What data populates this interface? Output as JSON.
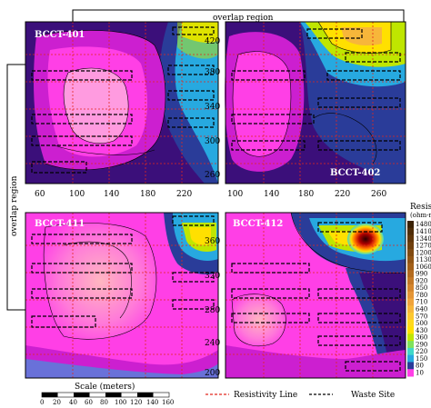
{
  "overlap_top": "overlap region",
  "overlap_left": "overlap region",
  "panels": [
    {
      "label": "BCCT-401"
    },
    {
      "label": "BCCT-402"
    },
    {
      "label": "BCCT-411"
    },
    {
      "label": "BCCT-412"
    }
  ],
  "top_x_ticks": [
    "60",
    "100",
    "140",
    "180",
    "220"
  ],
  "top_x_ticks_right": [
    "100",
    "140",
    "180",
    "220",
    "260"
  ],
  "top_y_ticks": [
    "420",
    "380",
    "340",
    "300",
    "260"
  ],
  "bottom_y_ticks": [
    "360",
    "320",
    "280",
    "240",
    "200"
  ],
  "scale": {
    "label": "Scale (meters)",
    "ticks": [
      "0",
      "20",
      "40",
      "60",
      "80",
      "100",
      "120",
      "140",
      "160"
    ]
  },
  "legend": {
    "resistivity_line": "Resistivity Line",
    "waste_site": "Waste Site"
  },
  "colorbar": {
    "title": "Resistivity",
    "unit": "(ohm-m)",
    "ticks": [
      "1480",
      "1410",
      "1340",
      "1270",
      "1200",
      "1130",
      "1060",
      "990",
      "920",
      "850",
      "780",
      "710",
      "640",
      "570",
      "500",
      "430",
      "360",
      "290",
      "220",
      "150",
      "80",
      "10"
    ],
    "colors": [
      "#3b2205",
      "#4f2d08",
      "#60360a",
      "#70400d",
      "#804a10",
      "#915514",
      "#a26019",
      "#b36b1f",
      "#c47826",
      "#d4852d",
      "#e49536",
      "#f0a43c",
      "#f7b63a",
      "#fcc830",
      "#ffd91c",
      "#ffe000",
      "#bfe600",
      "#7fe25c",
      "#40d8c8",
      "#27a9e0",
      "#2a3c99",
      "#ff3fe6"
    ]
  }
}
